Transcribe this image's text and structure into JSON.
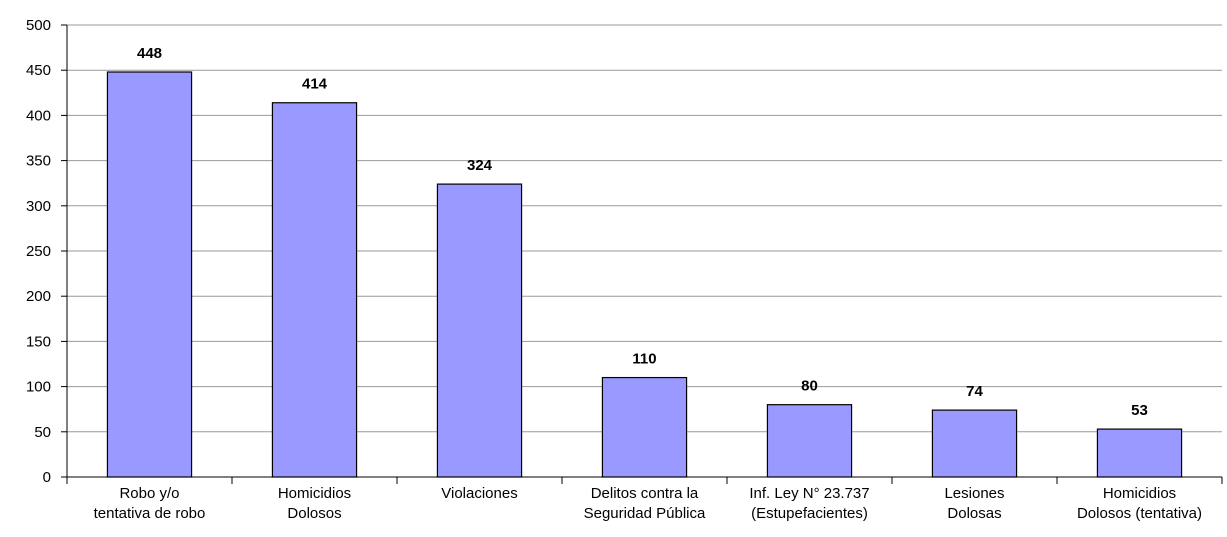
{
  "chart_data": {
    "type": "bar",
    "categories": [
      [
        "Robo y/o",
        "tentativa de robo"
      ],
      [
        "Homicidios",
        "Dolosos"
      ],
      [
        "Violaciones"
      ],
      [
        "Delitos contra la",
        "Seguridad Pública"
      ],
      [
        "Inf. Ley N° 23.737",
        "(Estupefacientes)"
      ],
      [
        "Lesiones",
        "Dolosas"
      ],
      [
        "Homicidios",
        "Dolosos (tentativa)"
      ]
    ],
    "values": [
      448,
      414,
      324,
      110,
      80,
      74,
      53
    ],
    "color": "#9999ff",
    "ylim": [
      0,
      500
    ],
    "yticks": [
      0,
      50,
      100,
      150,
      200,
      250,
      300,
      350,
      400,
      450,
      500
    ],
    "grid": true
  }
}
